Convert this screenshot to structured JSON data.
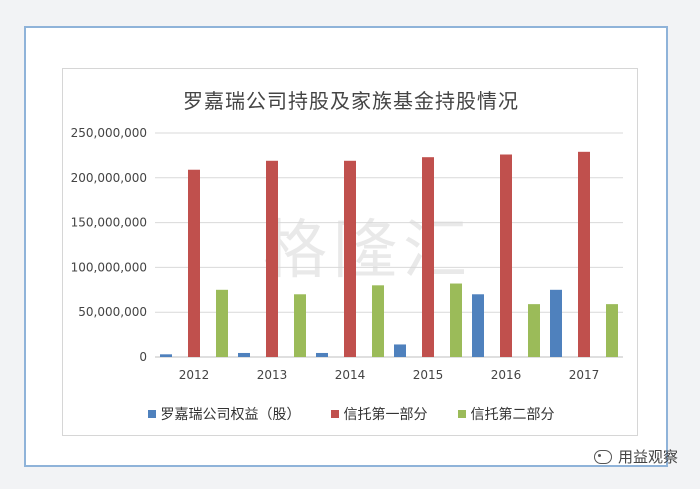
{
  "chart_data": {
    "type": "bar",
    "title": "罗嘉瑞公司持股及家族基金持股情况",
    "categories": [
      "2012",
      "2013",
      "2014",
      "2015",
      "2016",
      "2017"
    ],
    "series": [
      {
        "name": "罗嘉瑞公司权益（股）",
        "color": "#4f81bd",
        "values": [
          3000000,
          4500000,
          4500000,
          14000000,
          70000000,
          75000000
        ]
      },
      {
        "name": "信托第一部分",
        "color": "#c0504d",
        "values": [
          209000000,
          219000000,
          219000000,
          223000000,
          226000000,
          229000000
        ]
      },
      {
        "name": "信托第二部分",
        "color": "#9bbb59",
        "values": [
          75000000,
          70000000,
          80000000,
          82000000,
          59000000,
          59000000
        ]
      }
    ],
    "ylim": [
      0,
      250000000
    ],
    "yticks": [
      0,
      50000000,
      100000000,
      150000000,
      200000000,
      250000000
    ],
    "ytick_labels": [
      "0",
      "50,000,000",
      "100,000,000",
      "150,000,000",
      "200,000,000",
      "250,000,000"
    ],
    "grid": true,
    "legend": "bottom"
  },
  "watermark": "格隆汇",
  "brand": "用益观察"
}
